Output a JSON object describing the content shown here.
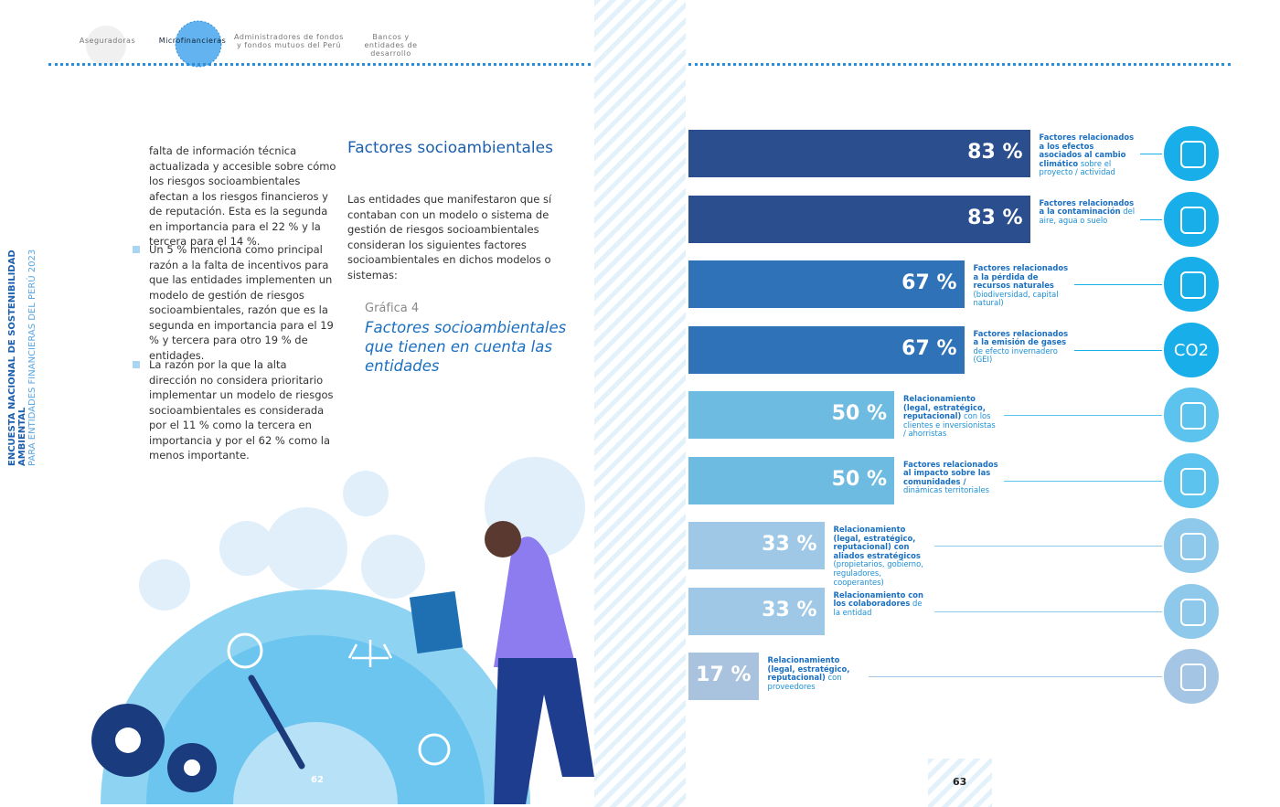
{
  "nav": [
    "Aseguradoras",
    "Microfinancieras",
    "Administradores de fondos y fondos mutuos del Perú",
    "Bancos y entidades de desarrollo"
  ],
  "sidebar": [
    "ENCUESTA NACIONAL DE SOSTENIBILIDAD AMBIENTAL",
    "PARA ENTIDADES FINANCIERAS DEL PERÚ 2023"
  ],
  "left_column": [
    "falta de información técnica actualizada y accesible sobre cómo los riesgos socioambientales afectan a los riesgos financieros y de reputación. Esta es la segunda en importancia para el 22 % y la tercera para el 14 %.",
    "Un 5 % menciona como principal razón a la falta de incentivos para que las entidades implementen un modelo de gestión de riesgos socioambientales, razón que es la segunda en importancia para el 19 % y tercera para otro 19 % de entidades.",
    "La razón por la que la alta dirección no considera prioritario implementar un modelo de riesgos socioambientales es considerada por el 11 % como la tercera en importancia y por el 62 % como la menos importante."
  ],
  "section": {
    "heading": "Factores socioambientales",
    "intro": "Las entidades que manifestaron que sí contaban con un modelo o sistema de gestión de riesgos socioambientales consideran los siguientes factores socioambientales en dichos modelos o sistemas:"
  },
  "page_numbers": [
    "62",
    "63"
  ],
  "chart_data": {
    "type": "bar",
    "orientation": "horizontal",
    "figure": "Gráfica 4",
    "title": "Factores socioambientales que tienen en cuenta las entidades",
    "categories": [
      "Factores relacionados a los efectos asociados al cambio climático",
      "Factores relacionados a la contaminación",
      "Factores relacionados a la pérdida de recursos naturales",
      "Factores relacionados a la emisión de gases",
      "Relacionamiento (legal, estratégico, reputacional)",
      "Factores relacionados al impacto sobre las comunidades /",
      "Relacionamiento (legal, estratégico, reputacional) con aliados estratégicos",
      "Relacionamiento con los colaboradores",
      "Relacionamiento (legal, estratégico, reputacional)"
    ],
    "category_notes": [
      "sobre el proyecto / actividad",
      "del aire, agua o suelo",
      "(biodiversidad, capital natural)",
      "de efecto invernadero (GEI)",
      "con los clientes e inversionistas / ahorristas",
      "dinámicas territoriales",
      "(propietarios, gobierno, reguladores, cooperantes)",
      "de la entidad",
      "con proveedores"
    ],
    "values": [
      83,
      83,
      67,
      67,
      50,
      50,
      33,
      33,
      17
    ],
    "value_labels": [
      "83 %",
      "83 %",
      "67 %",
      "67 %",
      "50 %",
      "50 %",
      "33 %",
      "33 %",
      "17 %"
    ],
    "colors": [
      "#2b4f8e",
      "#2b4f8e",
      "#2f72b8",
      "#2f72b8",
      "#6ebbe2",
      "#6ebbe2",
      "#9ec8e6",
      "#9ec8e6",
      "#a9c3df"
    ],
    "icon_colors": [
      "#17aeea",
      "#17aeea",
      "#17aeea",
      "#17aeea",
      "#5cc2ee",
      "#5cc2ee",
      "#8ec8ea",
      "#8ec8ea",
      "#a4c5e3"
    ],
    "icon_text": "CO2",
    "xlim": [
      0,
      100
    ]
  }
}
